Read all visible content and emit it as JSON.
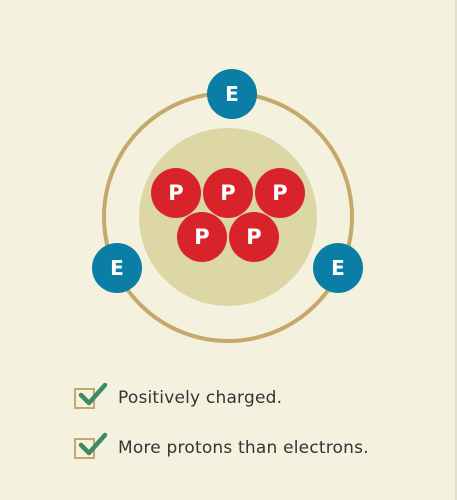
{
  "colors": {
    "background": "#f4f1df",
    "orbit": "#c5a96b",
    "nucleus": "#ddd6a5",
    "proton": "#d8232a",
    "electron": "#0a7ea4",
    "checkbox_border": "#c5a96b",
    "checkmark": "#3d8a63",
    "text": "#333333"
  },
  "atom": {
    "protons": [
      {
        "label": "P"
      },
      {
        "label": "P"
      },
      {
        "label": "P"
      },
      {
        "label": "P"
      },
      {
        "label": "P"
      }
    ],
    "electrons": [
      {
        "label": "E"
      },
      {
        "label": "E"
      },
      {
        "label": "E"
      }
    ]
  },
  "checklist": [
    {
      "label": "Positively charged.",
      "checked": true,
      "icon": "check-icon"
    },
    {
      "label": "More protons than electrons.",
      "checked": true,
      "icon": "check-icon"
    }
  ]
}
